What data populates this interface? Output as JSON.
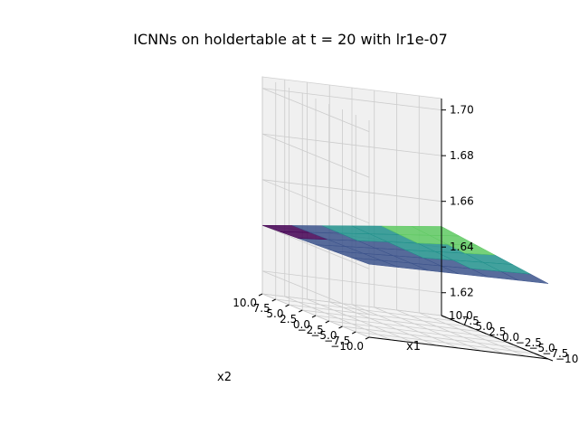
{
  "chart_data": {
    "type": "surface3d",
    "title": "ICNNs on holdertable at t = 20 with lr1e-07",
    "xlabel": "x1",
    "ylabel": "x2",
    "zlabel": "",
    "xlim": [
      -10.0,
      10.0
    ],
    "ylim": [
      -10.0,
      10.0
    ],
    "zlim": [
      1.61,
      1.705
    ],
    "x_ticks": [
      "−10.0",
      "−7.5",
      "−5.0",
      "−2.5",
      "0.0",
      "2.5",
      "5.0",
      "7.5",
      "10.0"
    ],
    "y_ticks": [
      "10.0",
      "7.5",
      "5.0",
      "2.5",
      "0.0",
      "−2.5",
      "−5.0",
      "−7.5",
      "−10.0"
    ],
    "z_ticks": [
      "1.62",
      "1.64",
      "1.66",
      "1.68",
      "1.70"
    ],
    "surface": {
      "colormap": "viridis",
      "z_at_x1_min_x2_max": 1.64,
      "z_at_x1_max_x2_max": 1.649,
      "z_at_x1_max_x2_min": 1.643,
      "z_at_x1_min_x2_min": 1.642
    },
    "grid": true
  }
}
